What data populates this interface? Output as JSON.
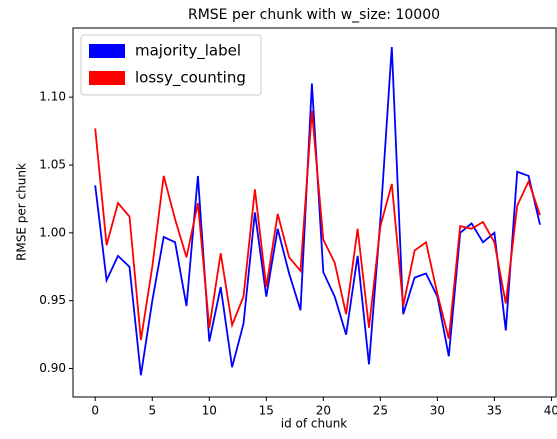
{
  "chart_data": {
    "type": "line",
    "title": "RMSE per chunk with w_size: 10000",
    "xlabel": "id of chunk",
    "ylabel": "RMSE per chunk",
    "x": [
      0,
      1,
      2,
      3,
      4,
      5,
      6,
      7,
      8,
      9,
      10,
      11,
      12,
      13,
      14,
      15,
      16,
      17,
      18,
      19,
      20,
      21,
      22,
      23,
      24,
      25,
      26,
      27,
      28,
      29,
      30,
      31,
      32,
      33,
      34,
      35,
      36,
      37,
      38,
      39
    ],
    "series": [
      {
        "name": "majority_label",
        "color": "#0000ff",
        "values": [
          1.035,
          0.965,
          0.983,
          0.975,
          0.895,
          0.95,
          0.997,
          0.993,
          0.946,
          1.042,
          0.92,
          0.96,
          0.901,
          0.933,
          1.015,
          0.953,
          1.003,
          0.97,
          0.943,
          1.11,
          0.971,
          0.953,
          0.925,
          0.983,
          0.903,
          1.01,
          1.137,
          0.94,
          0.967,
          0.97,
          0.953,
          0.909,
          1.0,
          1.007,
          0.993,
          1.0,
          0.928,
          1.045,
          1.042,
          1.006
        ]
      },
      {
        "name": "lossy_counting",
        "color": "#ff0000",
        "values": [
          1.077,
          0.991,
          1.022,
          1.012,
          0.921,
          0.975,
          1.042,
          1.01,
          0.982,
          1.022,
          0.93,
          0.985,
          0.932,
          0.953,
          1.032,
          0.96,
          1.014,
          0.982,
          0.972,
          1.09,
          0.995,
          0.978,
          0.94,
          1.003,
          0.93,
          1.005,
          1.036,
          0.946,
          0.987,
          0.993,
          0.955,
          0.922,
          1.005,
          1.003,
          1.008,
          0.993,
          0.948,
          1.02,
          1.038,
          1.013
        ]
      }
    ],
    "xlim": [
      -1.95,
      40.4
    ],
    "xticks": [
      0,
      5,
      10,
      15,
      20,
      25,
      30,
      35,
      40
    ],
    "ylim": [
      0.879,
      1.151
    ],
    "yticks": [
      {
        "value": 0.9,
        "label": "0.90"
      },
      {
        "value": 0.95,
        "label": "0.95"
      },
      {
        "value": 1.0,
        "label": "1.00"
      },
      {
        "value": 1.05,
        "label": "1.05"
      },
      {
        "value": 1.1,
        "label": "1.10"
      }
    ],
    "legend": "upper left"
  }
}
